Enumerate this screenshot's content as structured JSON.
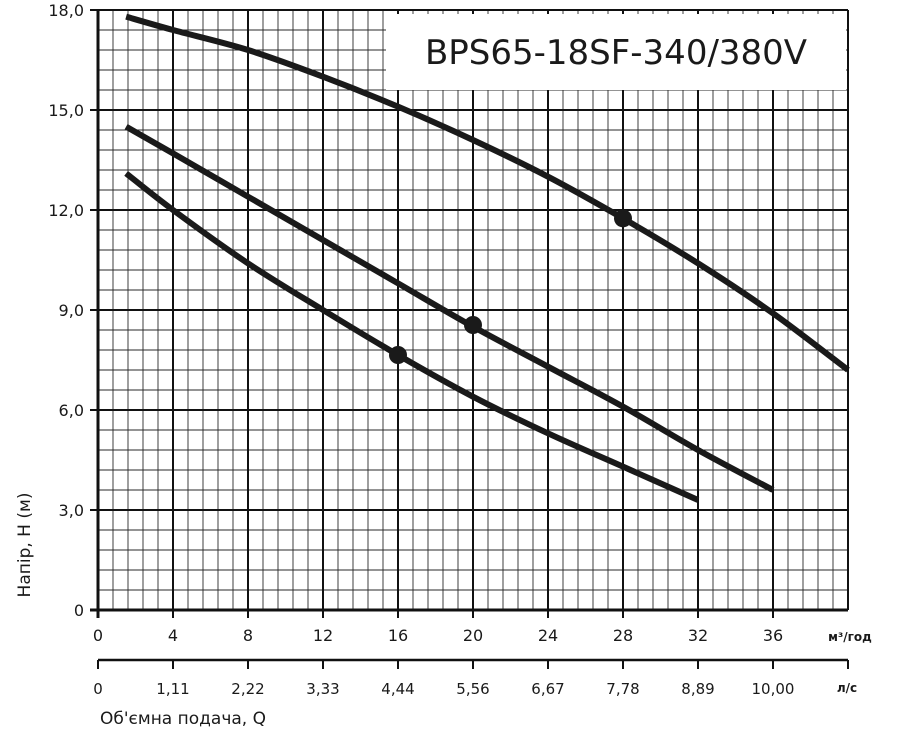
{
  "chart_data": {
    "type": "line",
    "title": "BPS65-18SF-340/380V",
    "ylabel": "Напір, Н (м)",
    "xlabel": "Об'ємна  подача, Q",
    "x_unit": "м³/год",
    "x2_unit": "л/с",
    "xlim": [
      0,
      40
    ],
    "ylim": [
      0,
      18
    ],
    "grid": true,
    "yticks": [
      "0",
      "3,0",
      "6,0",
      "9,0",
      "12,0",
      "15,0",
      "18,0"
    ],
    "xticks": [
      "0",
      "4",
      "8",
      "12",
      "16",
      "20",
      "24",
      "28",
      "32",
      "36"
    ],
    "x2ticks": [
      "0",
      "1,11",
      "2,22",
      "3,33",
      "4,44",
      "5,56",
      "6,67",
      "7,78",
      "8,89",
      "10,00"
    ],
    "series": [
      {
        "x": [
          1.5,
          4,
          8,
          12,
          16,
          20,
          24,
          28,
          32,
          36,
          40
        ],
        "y": [
          17.8,
          17.4,
          16.8,
          16.0,
          15.1,
          14.1,
          13.0,
          11.75,
          10.4,
          8.9,
          7.2
        ],
        "marker": [
          28,
          11.75
        ]
      },
      {
        "x": [
          1.5,
          4,
          8,
          12,
          16,
          20,
          24,
          28,
          32,
          36
        ],
        "y": [
          14.5,
          13.7,
          12.4,
          11.1,
          9.8,
          8.5,
          7.3,
          6.1,
          4.8,
          3.6
        ],
        "marker": [
          20,
          8.55
        ]
      },
      {
        "x": [
          1.5,
          4,
          8,
          12,
          16,
          20,
          24,
          28,
          32
        ],
        "y": [
          13.1,
          12.0,
          10.4,
          9.0,
          7.65,
          6.4,
          5.3,
          4.3,
          3.3
        ],
        "marker": [
          16,
          7.65
        ]
      }
    ]
  }
}
